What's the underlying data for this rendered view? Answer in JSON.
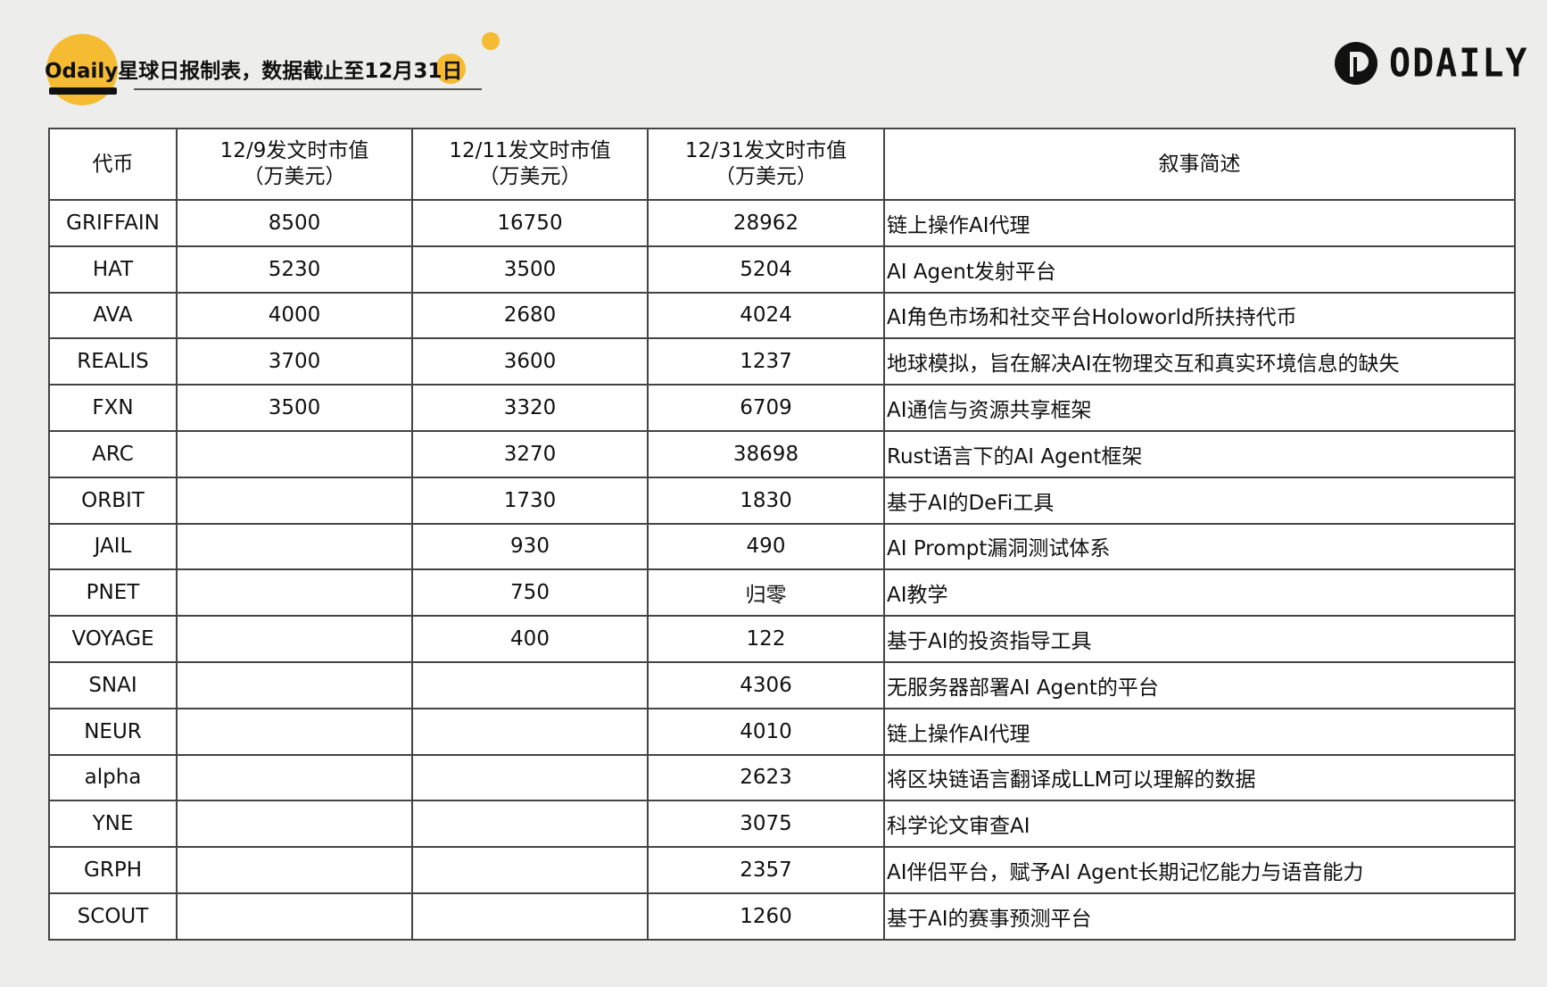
{
  "header": {
    "title_brand": "Odaily",
    "title_text": "星球日报制表，数据截止至12月",
    "title_day": "31",
    "title_suffix": "日",
    "logo_text": "ODAILY",
    "accent_color": "#f4bb33"
  },
  "table": {
    "columns": [
      "代币",
      "12/9发文时市值\n（万美元）",
      "12/11发文时市值\n（万美元）",
      "12/31发文时市值\n（万美元）",
      "叙事简述"
    ],
    "rows": [
      [
        "GRIFFAIN",
        "8500",
        "16750",
        "28962",
        "链上操作AI代理"
      ],
      [
        "HAT",
        "5230",
        "3500",
        "5204",
        "AI Agent发射平台"
      ],
      [
        "AVA",
        "4000",
        "2680",
        "4024",
        "AI角色市场和社交平台Holoworld所扶持代币"
      ],
      [
        "REALIS",
        "3700",
        "3600",
        "1237",
        "地球模拟，旨在解决AI在物理交互和真实环境信息的缺失"
      ],
      [
        "FXN",
        "3500",
        "3320",
        "6709",
        "AI通信与资源共享框架"
      ],
      [
        "ARC",
        "",
        "3270",
        "38698",
        "Rust语言下的AI Agent框架"
      ],
      [
        "ORBIT",
        "",
        "1730",
        "1830",
        "基于AI的DeFi工具"
      ],
      [
        "JAIL",
        "",
        "930",
        "490",
        "AI Prompt漏洞测试体系"
      ],
      [
        "PNET",
        "",
        "750",
        "归零",
        "AI教学"
      ],
      [
        "VOYAGE",
        "",
        "400",
        "122",
        "基于AI的投资指导工具"
      ],
      [
        "SNAI",
        "",
        "",
        "4306",
        "无服务器部署AI Agent的平台"
      ],
      [
        "NEUR",
        "",
        "",
        "4010",
        "链上操作AI代理"
      ],
      [
        "alpha",
        "",
        "",
        "2623",
        "将区块链语言翻译成LLM可以理解的数据"
      ],
      [
        "YNE",
        "",
        "",
        "3075",
        "科学论文审查AI"
      ],
      [
        "GRPH",
        "",
        "",
        "2357",
        "AI伴侣平台，赋予AI Agent长期记忆能力与语音能力"
      ],
      [
        "SCOUT",
        "",
        "",
        "1260",
        "基于AI的赛事预测平台"
      ]
    ]
  }
}
